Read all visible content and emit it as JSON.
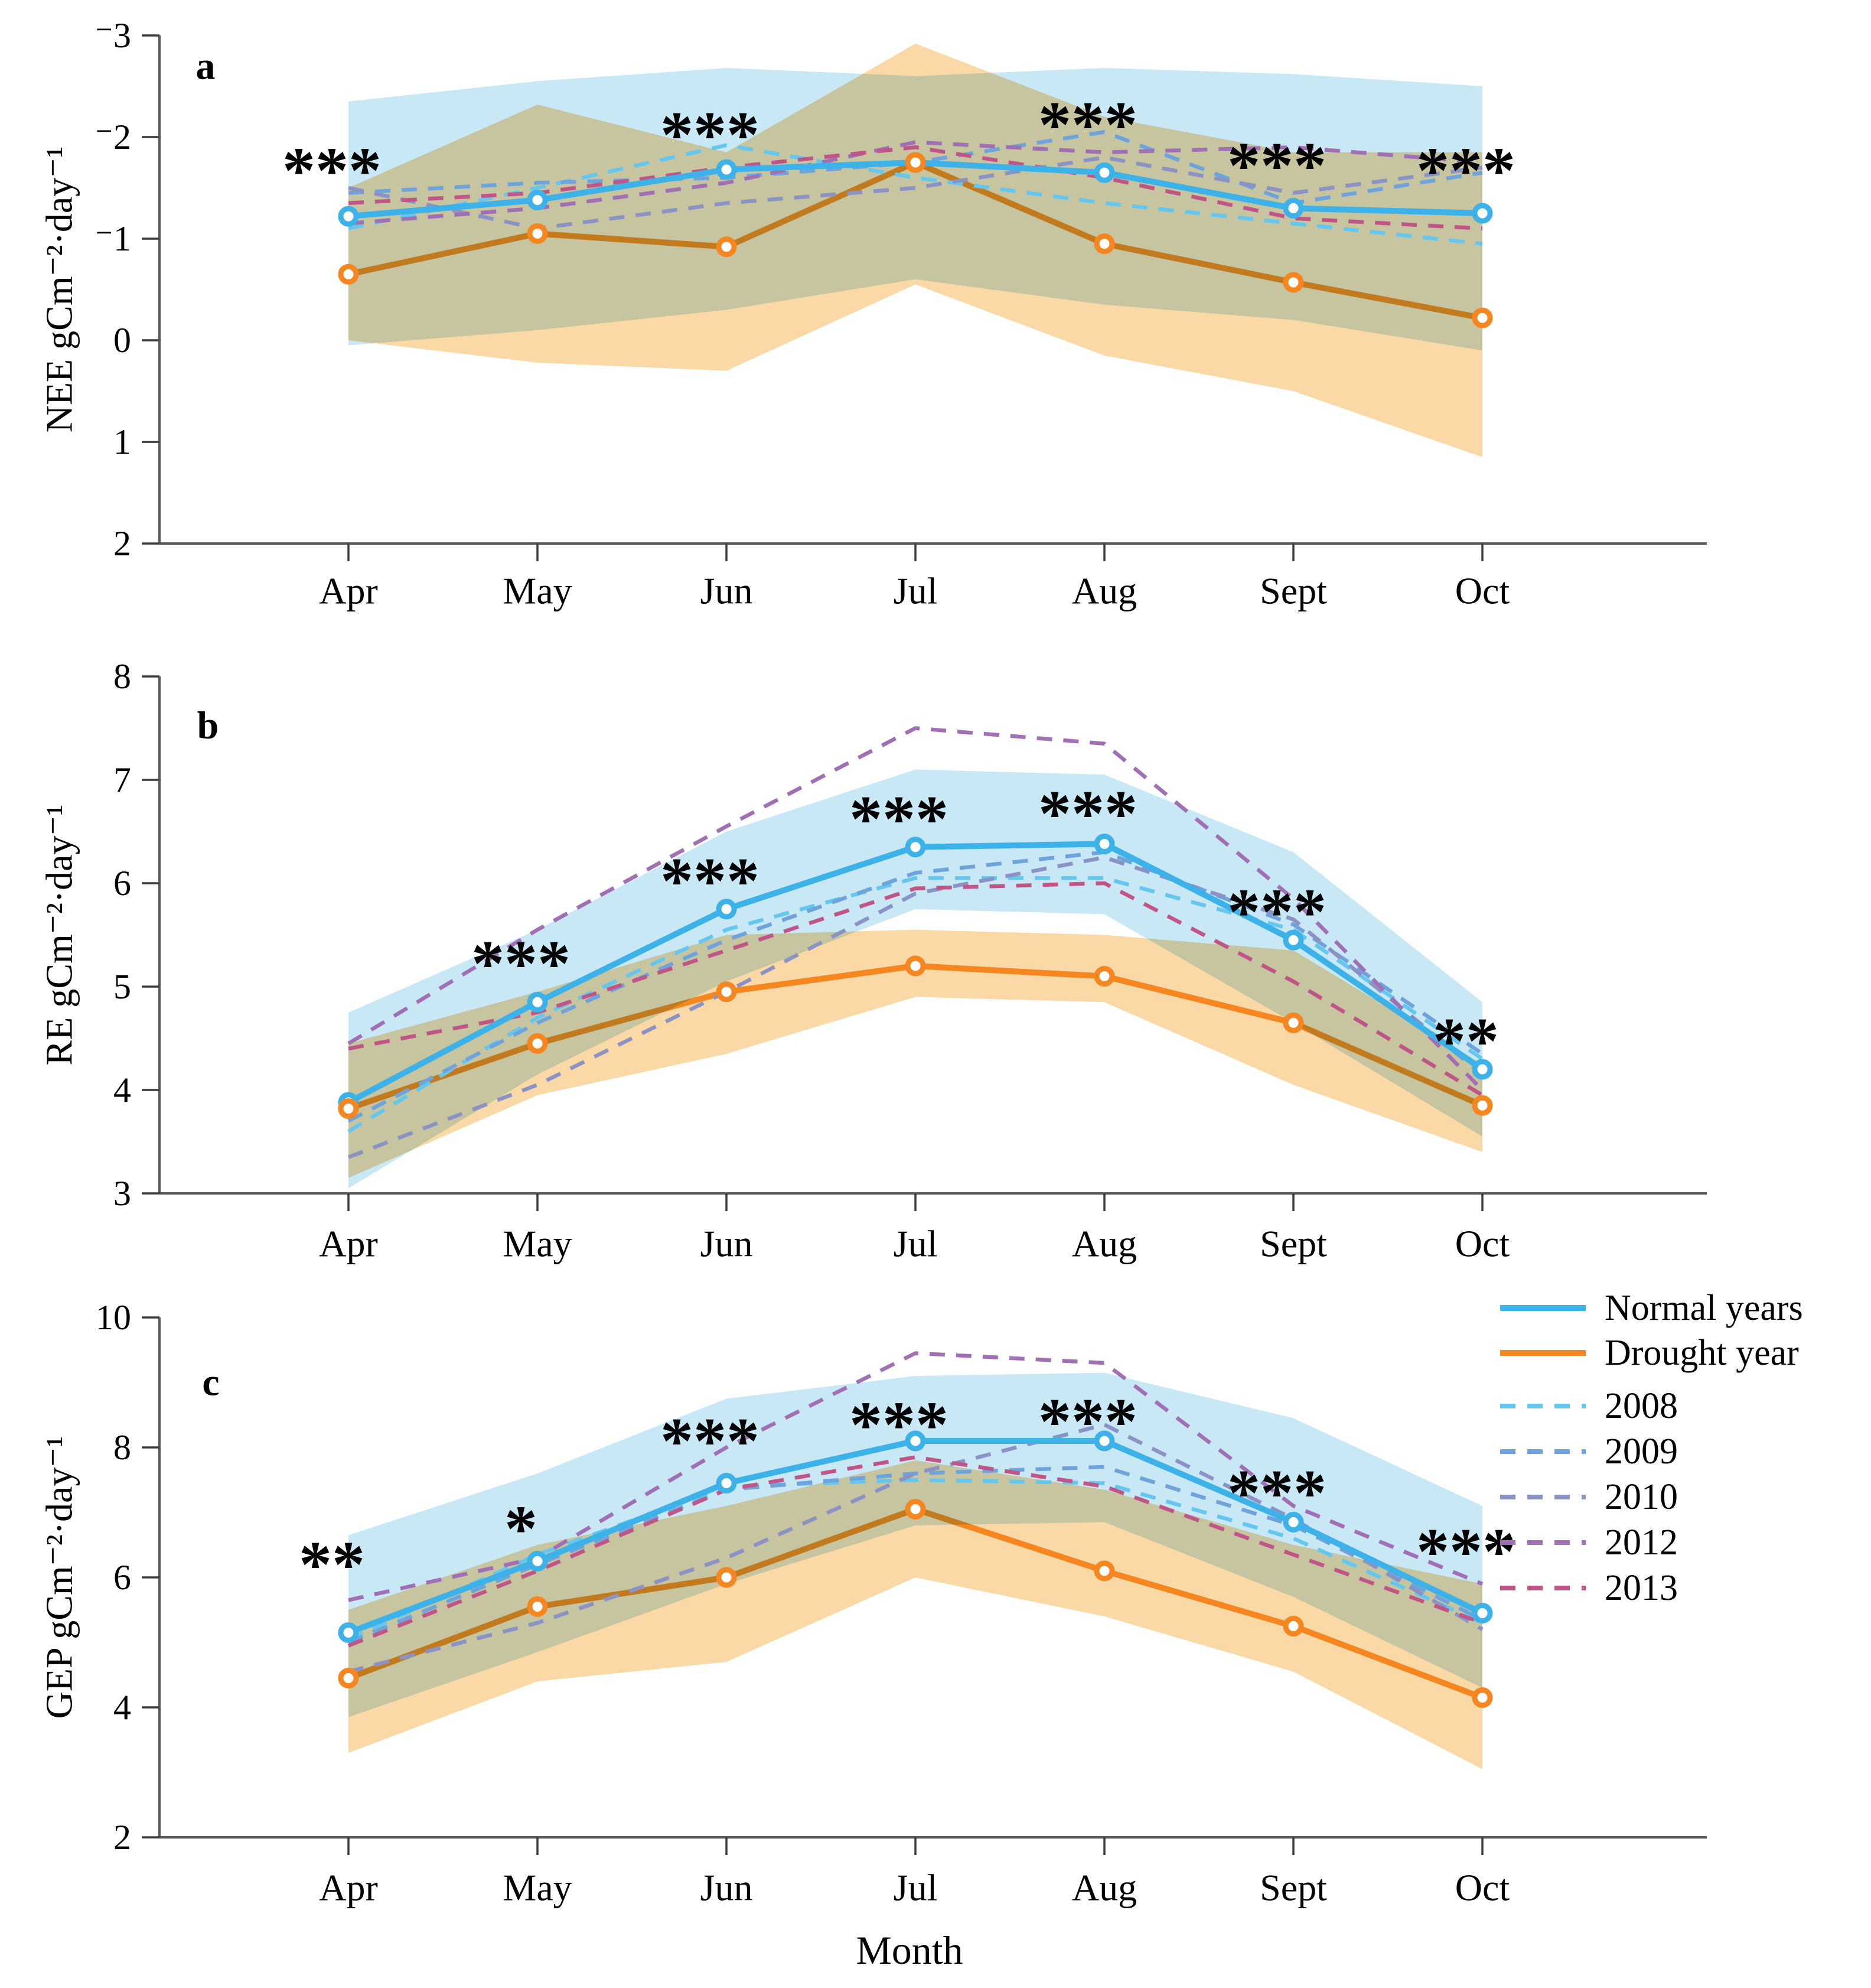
{
  "figure": {
    "xlabel": "Month",
    "months": [
      "Apr",
      "May",
      "Jun",
      "Jul",
      "Aug",
      "Sept",
      "Oct"
    ]
  },
  "colors": {
    "normal": "#3CB2E8",
    "drought": "#F6861F",
    "band_normal": "#C9E8F6",
    "band_drought": "#FBD9A6",
    "y2008": "#66C7EE",
    "y2009": "#6FA3DB",
    "y2010": "#8A93C4",
    "y2012": "#A16FB4",
    "y2013": "#C05687",
    "axis": "#5a5a5a",
    "tick": "#3a3a3a",
    "star": "#000000"
  },
  "legend": {
    "items": [
      {
        "label": "Normal years",
        "style": "solid",
        "color": "normal"
      },
      {
        "label": "Drought year",
        "style": "solid",
        "color": "drought"
      },
      {
        "label": "2008",
        "style": "dashed",
        "color": "y2008"
      },
      {
        "label": "2009",
        "style": "dashed",
        "color": "y2009"
      },
      {
        "label": "2010",
        "style": "dashed",
        "color": "y2010"
      },
      {
        "label": "2012",
        "style": "dashed",
        "color": "y2012"
      },
      {
        "label": "2013",
        "style": "dashed",
        "color": "y2013"
      }
    ]
  },
  "chart_data": [
    {
      "type": "line",
      "panel_label": "a",
      "ylabel": "NEE gCm⁻²·day⁻¹",
      "y_axis": {
        "range_top": -3,
        "range_bottom": 2,
        "inverted": true,
        "ticks": [
          -3,
          -2,
          -1,
          0,
          1,
          2
        ],
        "tick_labels": [
          "⁻3",
          "⁻2",
          "⁻1",
          "0",
          "1",
          "2"
        ]
      },
      "bands": [
        {
          "name": "Drought year ±SD",
          "upper": [
            -1.5,
            -2.32,
            -1.85,
            -2.92,
            -2.2,
            -1.85,
            -1.85
          ],
          "lower": [
            0.0,
            0.22,
            0.3,
            -0.55,
            0.15,
            0.5,
            1.15
          ]
        },
        {
          "name": "Normal years ±SD",
          "upper": [
            -2.35,
            -2.55,
            -2.68,
            -2.6,
            -2.68,
            -2.62,
            -2.5
          ],
          "lower": [
            0.05,
            -0.1,
            -0.3,
            -0.6,
            -0.35,
            -0.2,
            0.1
          ]
        }
      ],
      "series": [
        {
          "name": "Normal years",
          "style": "solid",
          "color": "normal",
          "values": [
            -1.22,
            -1.38,
            -1.68,
            -1.75,
            -1.65,
            -1.3,
            -1.25
          ]
        },
        {
          "name": "Drought year",
          "style": "solid",
          "color": "drought",
          "values": [
            -0.65,
            -1.05,
            -0.92,
            -1.75,
            -0.95,
            -0.57,
            -0.22
          ]
        },
        {
          "name": "2008",
          "style": "dashed",
          "color": "y2008",
          "values": [
            -1.1,
            -1.5,
            -1.92,
            -1.6,
            -1.35,
            -1.15,
            -0.95
          ]
        },
        {
          "name": "2009",
          "style": "dashed",
          "color": "y2009",
          "values": [
            -1.45,
            -1.55,
            -1.6,
            -1.75,
            -2.05,
            -1.35,
            -1.65
          ]
        },
        {
          "name": "2010",
          "style": "dashed",
          "color": "y2010",
          "values": [
            -1.5,
            -1.1,
            -1.35,
            -1.5,
            -1.8,
            -1.45,
            -1.7
          ]
        },
        {
          "name": "2012",
          "style": "dashed",
          "color": "y2012",
          "values": [
            -1.15,
            -1.3,
            -1.55,
            -1.95,
            -1.85,
            -1.9,
            -1.75
          ]
        },
        {
          "name": "2013",
          "style": "dashed",
          "color": "y2013",
          "values": [
            -1.35,
            -1.45,
            -1.7,
            -1.9,
            -1.6,
            -1.2,
            -1.1
          ]
        }
      ],
      "significance": [
        {
          "month": "Apr",
          "label": "***",
          "y": -1.8
        },
        {
          "month": "Jun",
          "label": "***",
          "y": -2.15
        },
        {
          "month": "Aug",
          "label": "***",
          "y": -2.25
        },
        {
          "month": "Sept",
          "label": "***",
          "y": -1.85
        },
        {
          "month": "Oct",
          "label": "***",
          "y": -1.8
        }
      ]
    },
    {
      "type": "line",
      "panel_label": "b",
      "ylabel": "RE gCm⁻²·day⁻¹",
      "y_axis": {
        "range_top": 8,
        "range_bottom": 3,
        "inverted": false,
        "ticks": [
          8,
          7,
          6,
          5,
          4,
          3
        ],
        "tick_labels": [
          "8",
          "7",
          "6",
          "5",
          "4",
          "3"
        ]
      },
      "bands": [
        {
          "name": "Drought year ±SD",
          "upper": [
            4.45,
            4.95,
            5.5,
            5.55,
            5.5,
            5.35,
            4.25
          ],
          "lower": [
            3.15,
            3.95,
            4.35,
            4.9,
            4.85,
            4.05,
            3.4
          ]
        },
        {
          "name": "Normal years ±SD",
          "upper": [
            4.75,
            5.55,
            6.5,
            7.1,
            7.05,
            6.3,
            4.85
          ],
          "lower": [
            3.05,
            4.15,
            5.05,
            5.75,
            5.7,
            4.65,
            3.55
          ]
        }
      ],
      "series": [
        {
          "name": "Normal years",
          "style": "solid",
          "color": "normal",
          "values": [
            3.88,
            4.85,
            5.75,
            6.35,
            6.38,
            5.45,
            4.2
          ]
        },
        {
          "name": "Drought year",
          "style": "solid",
          "color": "drought",
          "values": [
            3.82,
            4.45,
            4.95,
            5.2,
            5.1,
            4.65,
            3.85
          ]
        },
        {
          "name": "2008",
          "style": "dashed",
          "color": "y2008",
          "values": [
            3.6,
            4.7,
            5.55,
            6.05,
            6.05,
            5.55,
            4.3
          ]
        },
        {
          "name": "2009",
          "style": "dashed",
          "color": "y2009",
          "values": [
            3.7,
            4.65,
            5.45,
            6.1,
            6.3,
            5.6,
            4.35
          ]
        },
        {
          "name": "2010",
          "style": "dashed",
          "color": "y2010",
          "values": [
            3.35,
            4.05,
            4.95,
            5.9,
            6.25,
            5.65,
            4.15
          ]
        },
        {
          "name": "2012",
          "style": "dashed",
          "color": "y2012",
          "values": [
            4.45,
            5.55,
            6.55,
            7.5,
            7.35,
            5.85,
            4.0
          ]
        },
        {
          "name": "2013",
          "style": "dashed",
          "color": "y2013",
          "values": [
            4.4,
            4.75,
            5.35,
            5.95,
            6.0,
            5.05,
            3.95
          ]
        }
      ],
      "significance": [
        {
          "month": "May",
          "label": "***",
          "y": 5.35
        },
        {
          "month": "Jun",
          "label": "***",
          "y": 6.15
        },
        {
          "month": "Jul",
          "label": "***",
          "y": 6.75
        },
        {
          "month": "Aug",
          "label": "***",
          "y": 6.8
        },
        {
          "month": "Sept",
          "label": "***",
          "y": 5.85
        },
        {
          "month": "Oct",
          "label": "**",
          "y": 4.6
        }
      ]
    },
    {
      "type": "line",
      "panel_label": "c",
      "ylabel": "GEP gCm⁻²·day⁻¹",
      "y_axis": {
        "range_top": 10,
        "range_bottom": 2,
        "inverted": false,
        "ticks": [
          10,
          8,
          6,
          4,
          2
        ],
        "tick_labels": [
          "10",
          "8",
          "6",
          "4",
          "2"
        ]
      },
      "bands": [
        {
          "name": "Drought year ±SD",
          "upper": [
            5.5,
            6.5,
            7.1,
            7.8,
            7.35,
            6.5,
            5.9
          ],
          "lower": [
            3.3,
            4.4,
            4.7,
            6.0,
            5.4,
            4.55,
            3.05
          ]
        },
        {
          "name": "Normal years ±SD",
          "upper": [
            6.65,
            7.6,
            8.75,
            9.1,
            9.15,
            8.45,
            7.1
          ],
          "lower": [
            3.85,
            4.85,
            5.9,
            6.8,
            6.85,
            5.7,
            4.3
          ]
        }
      ],
      "series": [
        {
          "name": "Normal years",
          "style": "solid",
          "color": "normal",
          "values": [
            5.15,
            6.25,
            7.45,
            8.1,
            8.1,
            6.85,
            5.45
          ]
        },
        {
          "name": "Drought year",
          "style": "solid",
          "color": "drought",
          "values": [
            4.45,
            5.55,
            6.0,
            7.05,
            6.1,
            5.25,
            4.15
          ]
        },
        {
          "name": "2008",
          "style": "dashed",
          "color": "y2008",
          "values": [
            5.05,
            6.35,
            7.4,
            7.5,
            7.45,
            6.6,
            5.3
          ]
        },
        {
          "name": "2009",
          "style": "dashed",
          "color": "y2009",
          "values": [
            5.0,
            6.2,
            7.35,
            7.6,
            7.7,
            6.8,
            5.35
          ]
        },
        {
          "name": "2010",
          "style": "dashed",
          "color": "y2010",
          "values": [
            4.55,
            5.3,
            6.3,
            7.6,
            8.35,
            6.9,
            5.2
          ]
        },
        {
          "name": "2012",
          "style": "dashed",
          "color": "y2012",
          "values": [
            5.65,
            6.3,
            8.0,
            9.45,
            9.3,
            7.1,
            5.9
          ]
        },
        {
          "name": "2013",
          "style": "dashed",
          "color": "y2013",
          "values": [
            4.95,
            6.1,
            7.35,
            7.85,
            7.4,
            6.35,
            5.3
          ]
        }
      ],
      "significance": [
        {
          "month": "Apr",
          "label": "**",
          "y": 6.4
        },
        {
          "month": "May",
          "label": "*",
          "y": 6.95
        },
        {
          "month": "Jun",
          "label": "***",
          "y": 8.3
        },
        {
          "month": "Jul",
          "label": "***",
          "y": 8.55
        },
        {
          "month": "Aug",
          "label": "***",
          "y": 8.6
        },
        {
          "month": "Sept",
          "label": "***",
          "y": 7.5
        },
        {
          "month": "Oct",
          "label": "***",
          "y": 6.6
        }
      ]
    }
  ]
}
